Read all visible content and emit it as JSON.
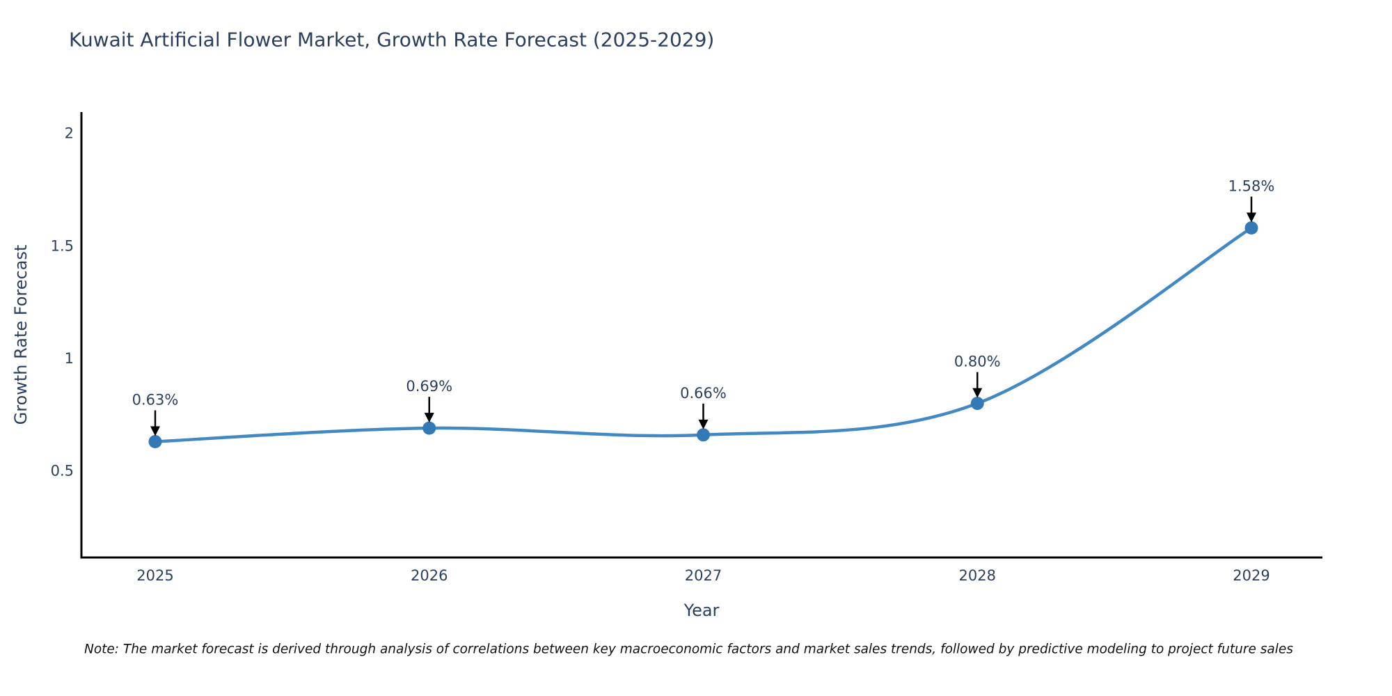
{
  "title": "Kuwait Artificial Flower Market, Growth Rate Forecast (2025-2029)",
  "note": "Note: The market forecast is derived through analysis of correlations between key macroeconomic factors and market sales trends, followed by predictive modeling to project future sales",
  "chart_data": {
    "type": "line",
    "title": "Kuwait Artificial Flower Market, Growth Rate Forecast (2025-2029)",
    "xlabel": "Year",
    "ylabel": "Growth Rate Forecast",
    "categories": [
      "2025",
      "2026",
      "2027",
      "2028",
      "2029"
    ],
    "series": [
      {
        "name": "Growth Rate Forecast",
        "values": [
          0.63,
          0.69,
          0.66,
          0.8,
          1.58
        ],
        "point_labels": [
          "0.63%",
          "0.69%",
          "0.66%",
          "0.80%",
          "1.58%"
        ]
      }
    ],
    "line_shape": "spline",
    "markers": true,
    "annotations_with_arrows": true,
    "yticks": [
      0.5,
      1,
      1.5,
      2
    ],
    "ytick_labels": [
      "0.5",
      "1",
      "1.5",
      "2"
    ],
    "ylim": [
      0.115,
      2.095
    ],
    "grid": false,
    "legend": false,
    "colors": {
      "line": "#4289c4",
      "marker": "#3379b5",
      "axis": "#000000",
      "text": "#2a3f5f",
      "arrow": "#000000"
    }
  }
}
